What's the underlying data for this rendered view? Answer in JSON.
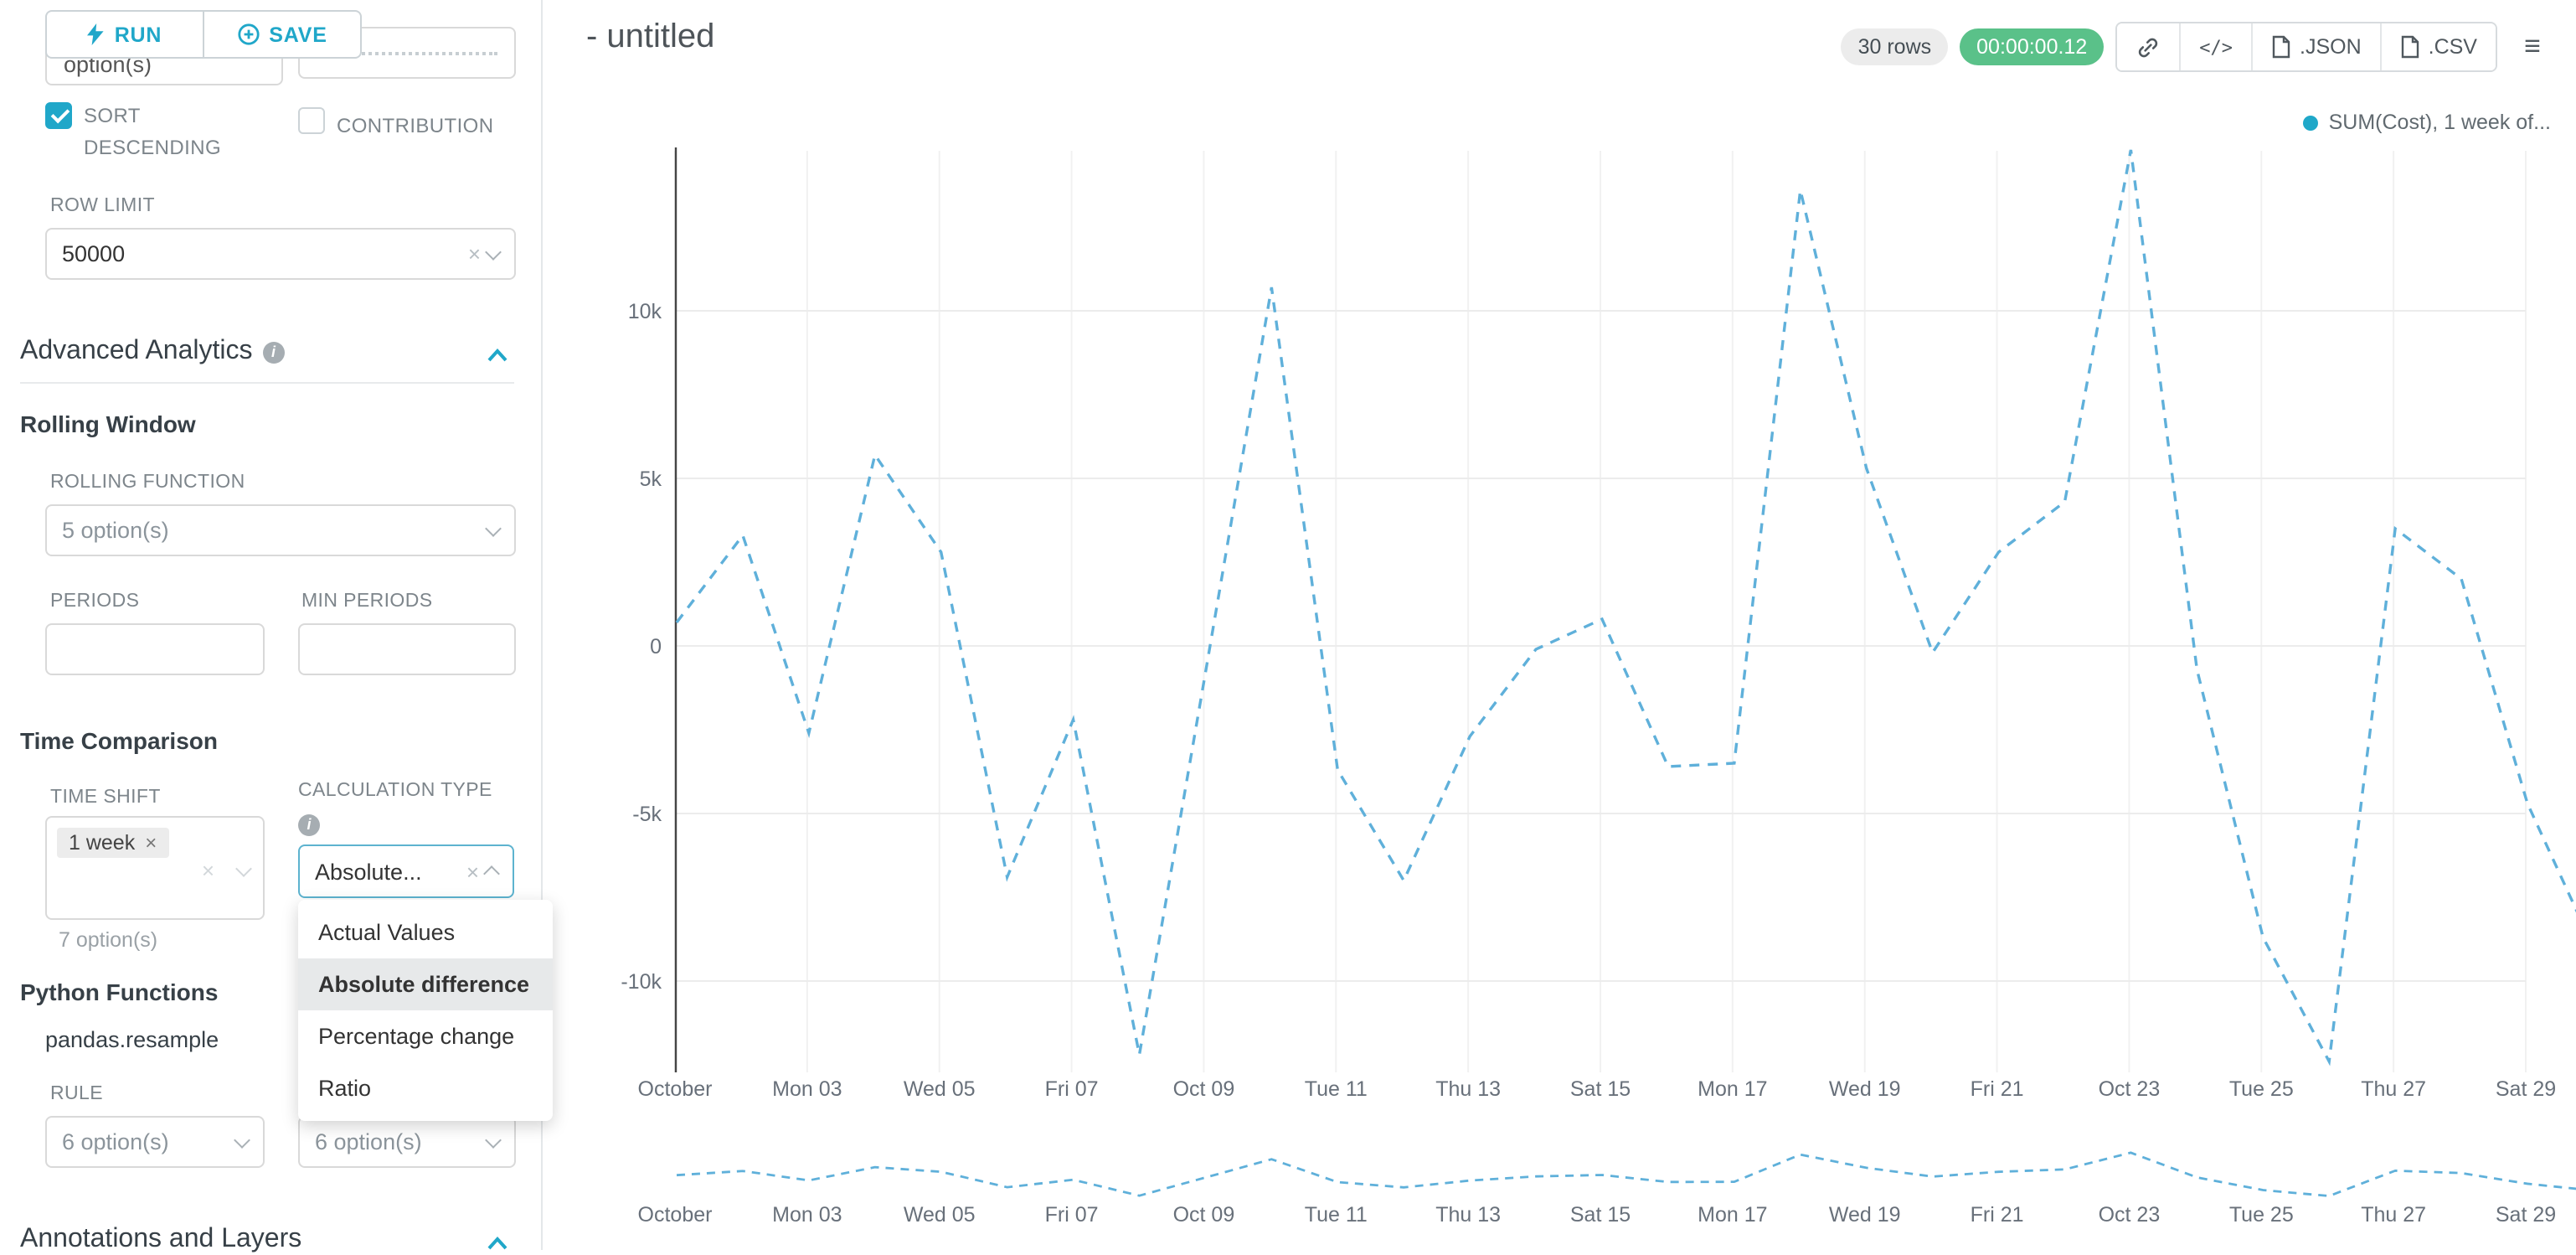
{
  "icons": {
    "clear": "×",
    "menu": "≡",
    "code": "</>",
    "info": "i"
  },
  "panel": {
    "run_label": "RUN",
    "save_label": "SAVE",
    "clipped_select_text": "option(s)",
    "sort_descending_label": "SORT DESCENDING",
    "sort_descending_checked": true,
    "contribution_label": "CONTRIBUTION",
    "contribution_checked": false,
    "row_limit_label": "ROW LIMIT",
    "row_limit_value": "50000",
    "advanced_analytics_title": "Advanced Analytics",
    "rolling_window_title": "Rolling Window",
    "rolling_function_label": "ROLLING FUNCTION",
    "rolling_function_value": "5 option(s)",
    "periods_label": "PERIODS",
    "min_periods_label": "MIN PERIODS",
    "time_comparison_title": "Time Comparison",
    "time_shift_label": "TIME SHIFT",
    "time_shift_tag": "1 week",
    "time_shift_hint": "7 option(s)",
    "calculation_type_label": "CALCULATION TYPE",
    "calculation_type_value": "Absolute...",
    "calc_options": [
      "Actual Values",
      "Absolute difference",
      "Percentage change",
      "Ratio"
    ],
    "calc_selected": "Absolute difference",
    "python_functions_title": "Python Functions",
    "resample_label": "pandas.resample",
    "rule_label": "RULE",
    "rule_value": "6 option(s)",
    "method_value": "6 option(s)",
    "annotations_title": "Annotations and Layers"
  },
  "header": {
    "title": "- untitled",
    "rows_badge": "30 rows",
    "timer": "00:00:00.12",
    "json_label": ".JSON",
    "csv_label": ".CSV"
  },
  "colors": {
    "accent": "#20a7c9",
    "success": "#5ac189"
  },
  "chart_data": {
    "type": "line",
    "title": "- untitled",
    "xlabel": "",
    "ylabel": "",
    "line_style": "dashed",
    "line_color": "#5fb0da",
    "legend_position": "top-right",
    "grid": true,
    "mini_preview": true,
    "legend": [
      {
        "name": "SUM(Cost), 1 week of...",
        "color": "#1fa8c9"
      }
    ],
    "x_tick_labels": [
      "October",
      "Mon 03",
      "Wed 05",
      "Fri 07",
      "Oct 09",
      "Tue 11",
      "Thu 13",
      "Sat 15",
      "Mon 17",
      "Wed 19",
      "Fri 21",
      "Oct 23",
      "Tue 25",
      "Thu 27",
      "Sat 29"
    ],
    "y_ticks": [
      {
        "label": "10k",
        "value": 10000
      },
      {
        "label": "5k",
        "value": 5000
      },
      {
        "label": "0",
        "value": 0
      },
      {
        "label": "-5k",
        "value": -5000
      },
      {
        "label": "-10k",
        "value": -10000
      }
    ],
    "ylim": [
      -12750,
      14800
    ],
    "x_days": [
      "Oct 01",
      "Oct 02",
      "Oct 03",
      "Oct 04",
      "Oct 05",
      "Oct 06",
      "Oct 07",
      "Oct 08",
      "Oct 09",
      "Oct 10",
      "Oct 11",
      "Oct 12",
      "Oct 13",
      "Oct 14",
      "Oct 15",
      "Oct 16",
      "Oct 17",
      "Oct 18",
      "Oct 19",
      "Oct 20",
      "Oct 21",
      "Oct 22",
      "Oct 23",
      "Oct 24",
      "Oct 25",
      "Oct 26",
      "Oct 27",
      "Oct 28",
      "Oct 29",
      "Oct 30"
    ],
    "values": [
      700,
      3300,
      -2600,
      5700,
      2800,
      -6900,
      -2200,
      -12200,
      -800,
      10700,
      -3700,
      -7000,
      -2700,
      -100,
      800,
      -3600,
      -3500,
      13600,
      5300,
      -200,
      2800,
      4300,
      14800,
      -700,
      -8700,
      -12400,
      3500,
      2000,
      -4700,
      -9000
    ]
  }
}
